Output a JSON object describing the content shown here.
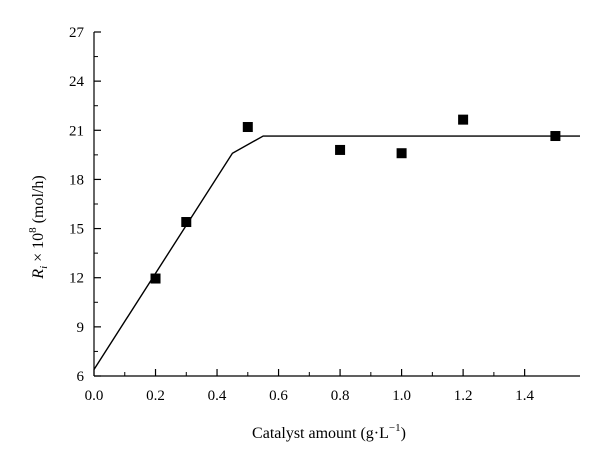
{
  "chart_data": {
    "type": "scatter",
    "title": "",
    "xlabel": "Catalyst amount (g·L",
    "xlabel_sup": "−1",
    "xlabel_close": ")",
    "ylabel_var": "R",
    "ylabel_sub": "i",
    "ylabel_mid": " × 10",
    "ylabel_sup": "8",
    "ylabel_unit": " (mol/h)",
    "xlim": [
      0.0,
      1.58
    ],
    "ylim": [
      6,
      27
    ],
    "xticks": [
      0.0,
      0.2,
      0.4,
      0.6,
      0.8,
      1.0,
      1.2,
      1.4
    ],
    "xtick_labels": [
      "0.0",
      "0.2",
      "0.4",
      "0.6",
      "0.8",
      "1.0",
      "1.2",
      "1.4"
    ],
    "yticks": [
      6,
      9,
      12,
      15,
      18,
      21,
      24,
      27
    ],
    "ytick_labels": [
      "6",
      "9",
      "12",
      "15",
      "18",
      "21",
      "24",
      "27"
    ],
    "grid": false,
    "series": [
      {
        "type": "scatter",
        "marker": "square",
        "x": [
          0.2,
          0.3,
          0.5,
          0.8,
          1.0,
          1.2,
          1.5
        ],
        "y": [
          11.95,
          15.4,
          21.2,
          19.8,
          19.6,
          21.65,
          20.65
        ]
      },
      {
        "type": "line",
        "x": [
          0.0,
          0.45,
          0.55,
          1.58
        ],
        "y": [
          6.4,
          19.6,
          20.65,
          20.65
        ]
      }
    ],
    "colors": {
      "marker": "#000000",
      "line": "#000000"
    }
  }
}
